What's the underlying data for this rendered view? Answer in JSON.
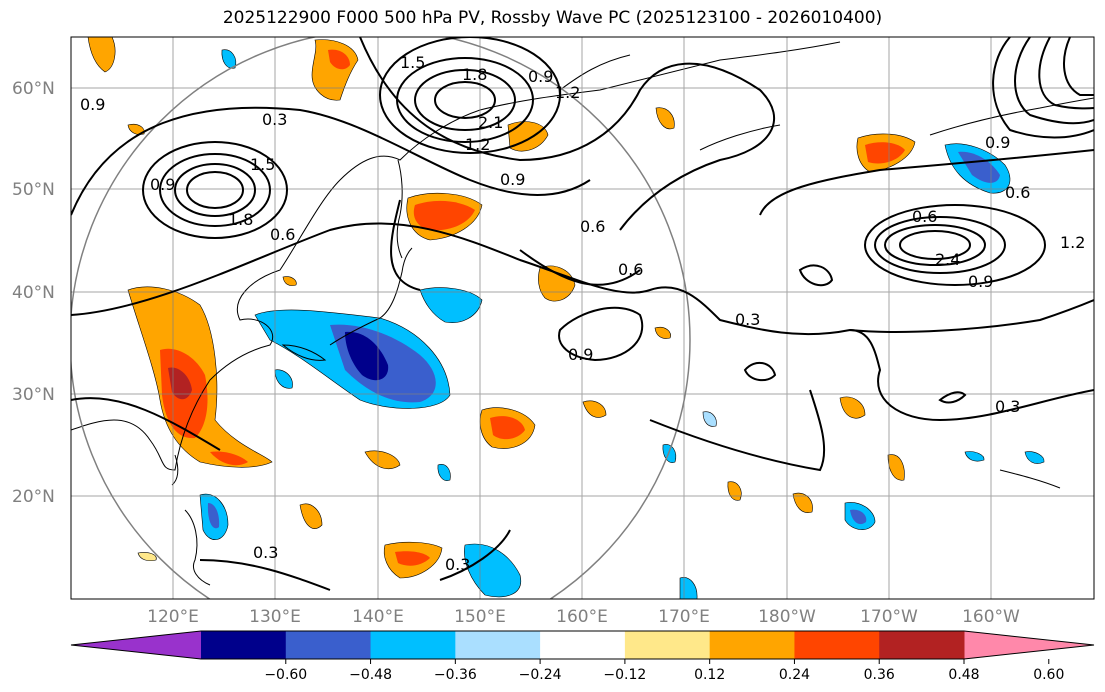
{
  "title": "2025122900 F000 500 hPa PV, Rossby Wave PC (2025123100 - 2026010400)",
  "lat_labels": [
    "60°N",
    "50°N",
    "40°N",
    "30°N",
    "20°N"
  ],
  "lon_labels": [
    "120°E",
    "130°E",
    "140°E",
    "150°E",
    "160°E",
    "170°E",
    "180°W",
    "170°W",
    "160°W"
  ],
  "contour_labels": [
    "0.3",
    "0.6",
    "0.9",
    "1.2",
    "1.5",
    "1.8",
    "2.1",
    "2.4"
  ],
  "colorbar": {
    "ticks": [
      "−0.60",
      "−0.48",
      "−0.36",
      "−0.24",
      "−0.12",
      "0.12",
      "0.24",
      "0.36",
      "0.48",
      "0.60"
    ],
    "colors": [
      "#9932cc",
      "#00008b",
      "#3a5fcd",
      "#00bfff",
      "#aadfff",
      "#ffffff",
      "#ffe88a",
      "#ffa500",
      "#ff4500",
      "#b22222",
      "#ff88aa"
    ]
  }
}
